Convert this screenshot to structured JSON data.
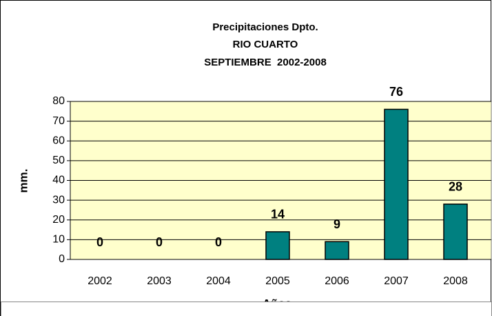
{
  "chart_data": {
    "type": "bar",
    "title": [
      "Precipitaciones Dpto.",
      "RIO CUARTO",
      "SEPTIEMBRE  2002-2008"
    ],
    "y_label": "mm.",
    "x_label": "Años",
    "categories": [
      "2002",
      "2003",
      "2004",
      "2005",
      "2006",
      "2007",
      "2008"
    ],
    "values": [
      0,
      0,
      0,
      14,
      9,
      76,
      28
    ],
    "color": "#008080",
    "plot_background": "#ffffcc",
    "ylim": [
      0,
      80
    ],
    "yticks": [
      0,
      10,
      20,
      30,
      40,
      50,
      60,
      70,
      80
    ],
    "grid": true
  }
}
